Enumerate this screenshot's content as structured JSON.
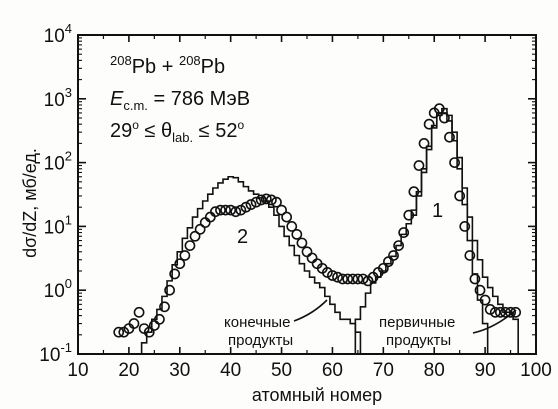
{
  "chart_data": {
    "type": "line",
    "title": "",
    "xlabel": "атомный номер",
    "ylabel": "dσ/dZ, мб/ед.",
    "xlim": [
      10,
      100
    ],
    "ylim": [
      0.1,
      10000
    ],
    "yscale": "log",
    "x_ticks": [
      "10",
      "20",
      "30",
      "40",
      "50",
      "60",
      "70",
      "80",
      "90",
      "100"
    ],
    "y_ticks": [
      {
        "base": "10",
        "exp": "-1"
      },
      {
        "base": "10",
        "exp": "0"
      },
      {
        "base": "10",
        "exp": "1"
      },
      {
        "base": "10",
        "exp": "2"
      },
      {
        "base": "10",
        "exp": "3"
      },
      {
        "base": "10",
        "exp": "4"
      }
    ],
    "reaction": {
      "a": "208",
      "el1": "Pb + ",
      "b": "208",
      "el2": "Pb"
    },
    "energy": {
      "sym": "E",
      "sub": "c.m.",
      "rest": " = 786 МэВ"
    },
    "angle": {
      "left": "29",
      "mid": " ≤ θ",
      "sub": "lab.",
      "right": " ≤ 52",
      "deg": "o"
    },
    "annotations": {
      "label_1": "1",
      "label_2": "2",
      "final_line1": "конечные",
      "final_line2": "продукты",
      "primary_line1": "первичные",
      "primary_line2": "продукты"
    },
    "series": [
      {
        "style": "points",
        "marker": "open-circle",
        "x": [
          18,
          19,
          20,
          21,
          22,
          23,
          24,
          25,
          26,
          27,
          28,
          29,
          30,
          31,
          32,
          33,
          34,
          35,
          36,
          37,
          38,
          39,
          40,
          41,
          42,
          43,
          44,
          45,
          46,
          47,
          48,
          49,
          50,
          51,
          52,
          53,
          54,
          55,
          56,
          57,
          58,
          59,
          60,
          61,
          62,
          63,
          64,
          65,
          66,
          67,
          68,
          69,
          70,
          71,
          72,
          73,
          74,
          75,
          76,
          77,
          78,
          79,
          80,
          81,
          82,
          83,
          84,
          85,
          86,
          87,
          88,
          89,
          90,
          91,
          92,
          93,
          94,
          95,
          96
        ],
        "values": [
          0.22,
          0.22,
          0.25,
          0.3,
          0.45,
          0.25,
          0.22,
          0.28,
          0.35,
          0.55,
          1.0,
          1.8,
          2.6,
          3.5,
          5.0,
          7.0,
          9.0,
          11.5,
          14,
          17,
          18,
          18,
          18,
          17,
          18,
          20,
          22,
          24,
          26,
          27,
          26,
          24,
          18,
          14,
          10,
          7.5,
          5.5,
          4.0,
          3.2,
          2.6,
          2.2,
          1.9,
          1.7,
          1.6,
          1.5,
          1.5,
          1.5,
          1.5,
          1.5,
          1.4,
          1.6,
          1.9,
          2.2,
          2.8,
          3.5,
          5.0,
          8,
          15,
          35,
          90,
          200,
          400,
          600,
          700,
          500,
          250,
          100,
          30,
          10,
          3.5,
          1.5,
          1.0,
          0.7,
          0.5,
          0.45,
          0.45,
          0.45,
          0.45,
          0.45
        ]
      },
      {
        "style": "step",
        "name_label": "final",
        "x": [
          22,
          23,
          24,
          25,
          26,
          27,
          28,
          29,
          30,
          31,
          32,
          33,
          34,
          35,
          36,
          37,
          38,
          39,
          40,
          41,
          42,
          43,
          44,
          45,
          46,
          47,
          48,
          49,
          50,
          51,
          52,
          53,
          54,
          55,
          56,
          57,
          58,
          59,
          60,
          61,
          62,
          63,
          64,
          65,
          66
        ],
        "values": [
          0.1,
          0.15,
          0.22,
          0.35,
          0.5,
          0.8,
          1.4,
          2.5,
          4.0,
          6.5,
          9.5,
          14,
          19,
          25,
          32,
          40,
          48,
          55,
          60,
          58,
          50,
          42,
          36,
          32,
          28,
          25,
          20,
          15,
          10,
          7,
          5,
          3.5,
          2.6,
          2.0,
          1.6,
          1.3,
          1.1,
          0.8,
          0.6,
          0.45,
          0.35,
          0.35,
          0.3,
          0.22,
          0.1
        ]
      },
      {
        "style": "step",
        "name_label": "primary",
        "x": [
          64,
          65,
          66,
          67,
          68,
          69,
          70,
          71,
          72,
          73,
          74,
          75,
          76,
          77,
          78,
          79,
          80,
          81,
          82,
          83,
          84,
          85,
          86,
          87,
          88,
          89,
          90,
          91,
          92,
          93,
          94,
          95,
          96,
          97
        ],
        "values": [
          0.1,
          0.35,
          0.55,
          0.9,
          1.3,
          1.6,
          2.0,
          2.6,
          3.4,
          5,
          7.5,
          11,
          18,
          35,
          80,
          180,
          380,
          600,
          700,
          550,
          300,
          120,
          40,
          14,
          6,
          3,
          1.6,
          1.1,
          0.8,
          0.6,
          0.45,
          0.45,
          0.35,
          0.1
        ]
      },
      {
        "style": "step",
        "name_label": "peak-1-final",
        "x": [
          76,
          77,
          78,
          79,
          80,
          81,
          82,
          83,
          84,
          85,
          86,
          87,
          88,
          89,
          90,
          91
        ],
        "values": [
          15,
          30,
          70,
          160,
          350,
          550,
          600,
          450,
          220,
          80,
          22,
          6,
          1.8,
          0.7,
          0.3,
          0.1
        ]
      }
    ]
  }
}
